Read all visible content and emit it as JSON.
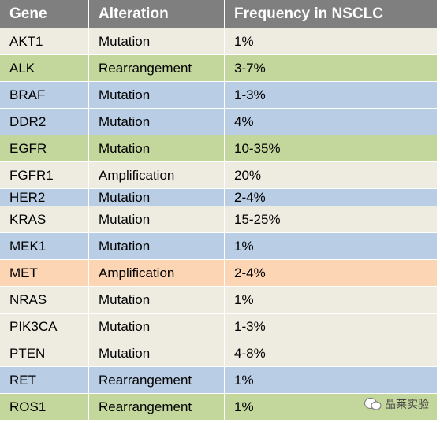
{
  "table": {
    "header": [
      "Gene",
      "Alteration",
      "Frequency in NSCLC"
    ],
    "rows": [
      [
        "AKT1",
        "Mutation",
        "1%"
      ],
      [
        "ALK",
        "Rearrangement",
        "3-7%"
      ],
      [
        "BRAF",
        "Mutation",
        "1-3%"
      ],
      [
        "DDR2",
        "Mutation",
        "4%"
      ],
      [
        "EGFR",
        "Mutation",
        "10-35%"
      ],
      [
        "FGFR1",
        "Amplification",
        "20%"
      ],
      [
        "HER2",
        "Mutation",
        "2-4%"
      ],
      [
        "KRAS",
        "Mutation",
        "15-25%"
      ],
      [
        "MEK1",
        "Mutation",
        "1%"
      ],
      [
        "MET",
        "Amplification",
        "2-4%"
      ],
      [
        "NRAS",
        "Mutation",
        "1%"
      ],
      [
        "PIK3CA",
        "Mutation",
        "1-3%"
      ],
      [
        "PTEN",
        "Mutation",
        "4-8%"
      ],
      [
        "RET",
        "Rearrangement",
        "1%"
      ],
      [
        "ROS1",
        "Rearrangement",
        "1%"
      ]
    ]
  },
  "watermark": "晶莱实验"
}
